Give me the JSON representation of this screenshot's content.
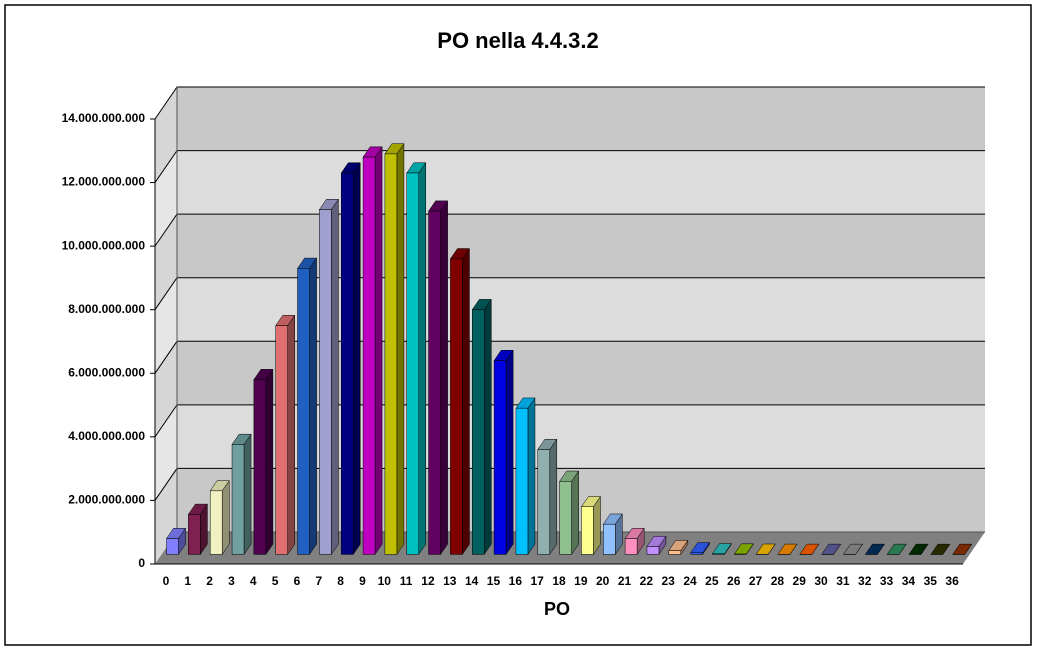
{
  "chart_data": {
    "type": "bar3d",
    "title": "PO nella 4.4.3.2",
    "x_label": "PO",
    "categories": [
      "0",
      "1",
      "2",
      "3",
      "4",
      "5",
      "6",
      "7",
      "8",
      "9",
      "10",
      "11",
      "12",
      "13",
      "14",
      "15",
      "16",
      "17",
      "18",
      "19",
      "20",
      "21",
      "22",
      "23",
      "24",
      "25",
      "26",
      "27",
      "28",
      "29",
      "30",
      "31",
      "32",
      "33",
      "34",
      "35",
      "36"
    ],
    "values": [
      500000000,
      1260000000,
      2000000000,
      3460000000,
      5500000000,
      7200000000,
      9000000000,
      10850000000,
      12000000000,
      12500000000,
      12600000000,
      12000000000,
      10800000000,
      9300000000,
      7700000000,
      6100000000,
      4600000000,
      3300000000,
      2300000000,
      1500000000,
      950000000,
      500000000,
      250000000,
      120000000,
      50000000,
      20000000,
      10000000,
      5000000,
      3000000,
      2000000,
      1000000,
      1000000,
      1000000,
      1000000,
      1000000,
      1000000,
      1000000
    ],
    "colors": [
      "#8080ff",
      "#802050",
      "#f0f0c0",
      "#70a0a0",
      "#500050",
      "#e07070",
      "#2060c0",
      "#a0a0d0",
      "#000080",
      "#c000c0",
      "#c0c000",
      "#00c0c0",
      "#600060",
      "#800000",
      "#006060",
      "#0000e0",
      "#00c0ff",
      "#90b0b0",
      "#90c090",
      "#ffff90",
      "#90c0ff",
      "#ff90c0",
      "#c090ff",
      "#ffc090",
      "#3060ff",
      "#30c0c0",
      "#90c000",
      "#ffc000",
      "#ff9000",
      "#ff6000",
      "#6060a0",
      "#909090",
      "#003060",
      "#309060",
      "#003000",
      "#303000",
      "#903000"
    ],
    "ylim": [
      0,
      14000000000
    ],
    "yticks": [
      0,
      {
        "value": 2000000000,
        "label": "2.000.000.000"
      },
      {
        "value": 4000000000,
        "label": "4.000.000.000"
      },
      {
        "value": 6000000000,
        "label": "6.000.000.000"
      },
      {
        "value": 8000000000,
        "label": "8.000.000.000"
      },
      {
        "value": 10000000000,
        "label": "10.000.000.000"
      },
      {
        "value": 12000000000,
        "label": "12.000.000.000"
      },
      {
        "value": 14000000000,
        "label": "14.000.000.000"
      }
    ],
    "grid": true
  }
}
